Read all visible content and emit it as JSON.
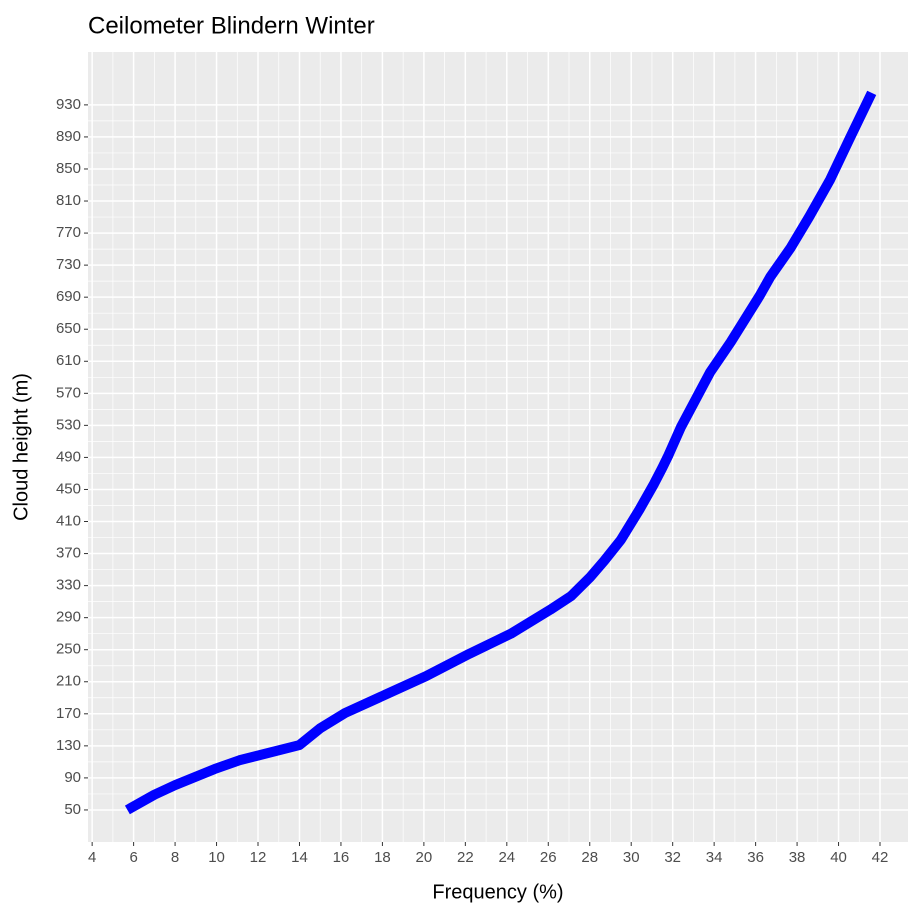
{
  "chart_data": {
    "type": "line",
    "title": "Ceilometer Blindern Winter",
    "x_label": "Frequency (%)",
    "y_label": "Cloud height (m)",
    "x": [
      5.7,
      7.0,
      8.0,
      9.9,
      11.1,
      14.0,
      15.0,
      16.2,
      17.9,
      20.1,
      22.2,
      24.2,
      26.1,
      27.1,
      28.0,
      28.7,
      29.5,
      30.4,
      31.1,
      31.5,
      31.8,
      32.4,
      33.1,
      33.8,
      34.8,
      36.2,
      36.7,
      37.7,
      38.6,
      39.6,
      40.5,
      41.6
    ],
    "series": [
      {
        "name": "Cloud height",
        "color": "#0000ff",
        "values": [
          50,
          69,
          81,
          101,
          112,
          131,
          152,
          171,
          191,
          217,
          245,
          270,
          300,
          317,
          340,
          361,
          387,
          425,
          457,
          477,
          493,
          528,
          562,
          596,
          634,
          692,
          715,
          752,
          791,
          837,
          886,
          945
        ]
      }
    ],
    "xlim": [
      3.8,
      43.35
    ],
    "xticks": [
      4,
      6,
      8,
      10,
      12,
      14,
      16,
      18,
      20,
      22,
      24,
      26,
      28,
      30,
      32,
      34,
      36,
      38,
      40,
      42
    ],
    "ylim": [
      10,
      996
    ],
    "yticks": [
      50,
      90,
      130,
      170,
      210,
      250,
      290,
      330,
      370,
      410,
      450,
      490,
      530,
      570,
      610,
      650,
      690,
      730,
      770,
      810,
      850,
      890,
      930
    ],
    "grid": true,
    "minor_grid": true,
    "background": "#ebebeb"
  }
}
